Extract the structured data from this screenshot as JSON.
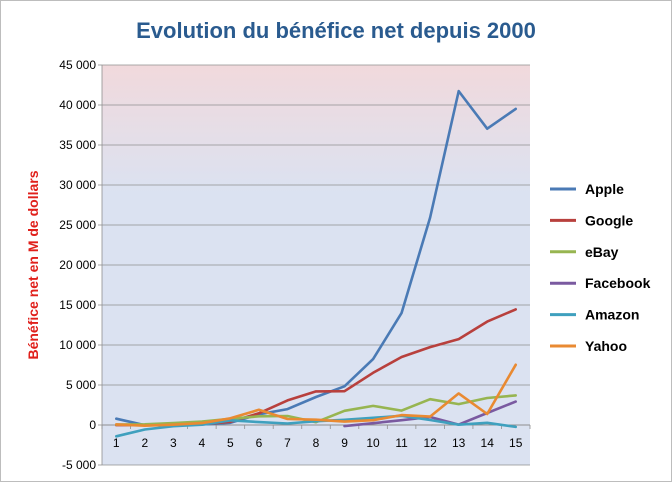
{
  "chart_data": {
    "type": "line",
    "title": "Evolution du bénéfice net depuis 2000",
    "ylabel": "Bénéfice net en M de dollars",
    "xlabel": "",
    "x": [
      1,
      2,
      3,
      4,
      5,
      6,
      7,
      8,
      9,
      10,
      11,
      12,
      13,
      14,
      15
    ],
    "ylim": [
      -5000,
      45000
    ],
    "yticks": [
      -5000,
      0,
      5000,
      10000,
      15000,
      20000,
      25000,
      30000,
      35000,
      40000,
      45000
    ],
    "ytick_labels": [
      "-5 000",
      "0",
      "5 000",
      "10 000",
      "15 000",
      "20 000",
      "25 000",
      "30 000",
      "35 000",
      "40 000",
      "45 000"
    ],
    "grid": true,
    "legend": "right",
    "series": [
      {
        "name": "Apple",
        "color": "#4a7ab5",
        "x": [
          1,
          2,
          3,
          4,
          5,
          6,
          7,
          8,
          9,
          10,
          11,
          12,
          13,
          14,
          15
        ],
        "values": [
          786,
          -25,
          65,
          69,
          276,
          1335,
          1989,
          3496,
          4834,
          8235,
          14013,
          25922,
          41733,
          37037,
          39510
        ]
      },
      {
        "name": "Google",
        "color": "#b8403d",
        "x": [
          1,
          2,
          3,
          4,
          5,
          6,
          7,
          8,
          9,
          10,
          11,
          12,
          13,
          14,
          15
        ],
        "values": [
          -15,
          7,
          100,
          106,
          399,
          1465,
          3077,
          4204,
          4227,
          6520,
          8505,
          9737,
          10737,
          12920,
          14444
        ]
      },
      {
        "name": "eBay",
        "color": "#97b551",
        "x": [
          1,
          2,
          3,
          4,
          5,
          6,
          7,
          8,
          9,
          10,
          11,
          12,
          13,
          14,
          15
        ],
        "values": [
          48,
          90,
          250,
          442,
          778,
          1082,
          1126,
          348,
          1779,
          2389,
          1801,
          3229,
          2609,
          3372,
          3700
        ]
      },
      {
        "name": "Facebook",
        "color": "#7a5aa0",
        "x": [
          9,
          10,
          11,
          12,
          13,
          14,
          15
        ],
        "values": [
          -138,
          229,
          606,
          1000,
          53,
          1500,
          2925
        ]
      },
      {
        "name": "Amazon",
        "color": "#3fa0be",
        "x": [
          1,
          2,
          3,
          4,
          5,
          6,
          7,
          8,
          9,
          10,
          11,
          12,
          13,
          14,
          15
        ],
        "values": [
          -1411,
          -567,
          -149,
          35,
          588,
          359,
          190,
          476,
          645,
          902,
          1152,
          631,
          39,
          274,
          -241
        ]
      },
      {
        "name": "Yahoo",
        "color": "#e98a32",
        "x": [
          1,
          2,
          3,
          4,
          5,
          6,
          7,
          8,
          9,
          10,
          11,
          12,
          13,
          14,
          15
        ],
        "values": [
          71,
          -93,
          43,
          238,
          840,
          1896,
          751,
          660,
          424,
          598,
          1232,
          1049,
          3945,
          1376,
          7522
        ]
      }
    ]
  }
}
